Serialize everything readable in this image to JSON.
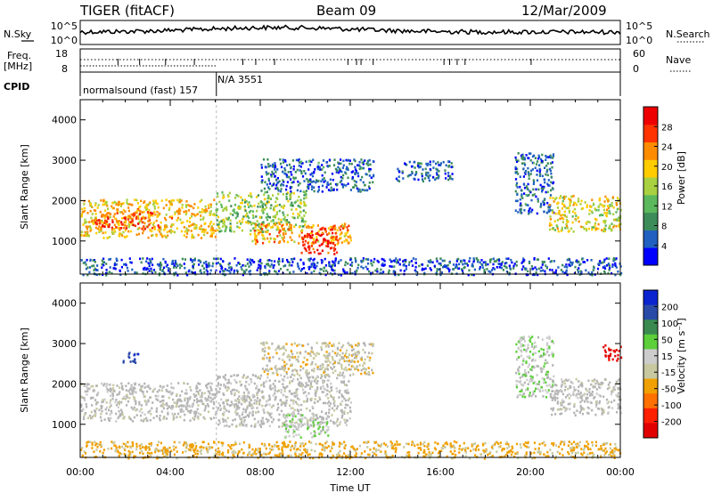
{
  "header": {
    "station": "TIGER (fitACF)",
    "beam": "Beam 09",
    "date": "12/Mar/2009"
  },
  "summary": {
    "nsky_label": "N.Sky",
    "nsearch_label": "N.Search",
    "freq_label_line1": "Freq.",
    "freq_label_line2": "[MHz]",
    "nave_label": "Nave",
    "cpid_label": "CPID",
    "cpid_text_1": "normalsound (fast) 157",
    "cpid_text_2": "N/A 3551",
    "noise_ticks": [
      "10^5",
      "10^0"
    ],
    "freq_ticks": [
      "18",
      "8"
    ],
    "nave_ticks": [
      "60",
      "0"
    ]
  },
  "time_axis": {
    "label": "Time UT",
    "ticks": [
      "00:00",
      "04:00",
      "08:00",
      "12:00",
      "16:00",
      "20:00",
      "00:00"
    ],
    "range_hours": [
      0,
      24
    ],
    "mode_change_hour": 6.05
  },
  "colors": {
    "power": [
      "#0000ff",
      "#2060c0",
      "#3c8c5a",
      "#5cb85c",
      "#a8d040",
      "#ffcc00",
      "#ff8c00",
      "#ff3300",
      "#ee0000"
    ],
    "velocity": [
      "#0b24d0",
      "#2a4aa8",
      "#3a8a50",
      "#5ccf3a",
      "#cccccc",
      "#c8c8a0",
      "#f0a000",
      "#ff7000",
      "#ff2000",
      "#e00000"
    ],
    "ground_scatter": "#b4b4b4"
  },
  "chart_data": [
    {
      "type": "heatmap",
      "name": "power",
      "ylabel": "Slant Range [km]",
      "ylim": [
        180,
        4500
      ],
      "yticks": [
        "1000",
        "2000",
        "3000",
        "4000"
      ],
      "colorbar_label": "Power [dB]",
      "colorbar_ticks": [
        "4",
        "8",
        "12",
        "16",
        "20",
        "24",
        "28"
      ],
      "crange": [
        0,
        32
      ],
      "regions": [
        {
          "t": [
            0.0,
            6.0
          ],
          "r": [
            1100,
            2050
          ],
          "value": 20
        },
        {
          "t": [
            0.6,
            3.5
          ],
          "r": [
            1300,
            1750
          ],
          "value": 26
        },
        {
          "t": [
            6.0,
            10.0
          ],
          "r": [
            1250,
            2250
          ],
          "value": 14
        },
        {
          "t": [
            7.5,
            12.0
          ],
          "r": [
            950,
            1450
          ],
          "value": 22
        },
        {
          "t": [
            9.8,
            11.4
          ],
          "r": [
            700,
            1350
          ],
          "value": 29
        },
        {
          "t": [
            8.0,
            13.0
          ],
          "r": [
            2250,
            3050
          ],
          "value": 6
        },
        {
          "t": [
            14.0,
            16.5
          ],
          "r": [
            2500,
            3000
          ],
          "value": 6
        },
        {
          "t": [
            19.3,
            21.0
          ],
          "r": [
            1700,
            3200
          ],
          "value": 6
        },
        {
          "t": [
            20.8,
            24.0
          ],
          "r": [
            1250,
            2150
          ],
          "value": 18
        },
        {
          "t": [
            0.0,
            24.0
          ],
          "r": [
            180,
            600
          ],
          "value": 5
        }
      ]
    },
    {
      "type": "heatmap",
      "name": "velocity",
      "ylabel": "Slant Range [km]",
      "ylim": [
        180,
        4500
      ],
      "yticks": [
        "1000",
        "2000",
        "3000",
        "4000"
      ],
      "colorbar_label": "Velocity [m s⁻¹]",
      "colorbar_ticks": [
        "200",
        "100",
        "50",
        "15",
        "-15",
        "-50",
        "-100",
        "-200"
      ],
      "crange": [
        250,
        -250
      ],
      "regions": [
        {
          "t": [
            0.0,
            6.0
          ],
          "r": [
            1100,
            2050
          ],
          "value": 0
        },
        {
          "t": [
            6.0,
            12.0
          ],
          "r": [
            950,
            2250
          ],
          "value": 0
        },
        {
          "t": [
            9.0,
            11.0
          ],
          "r": [
            700,
            1300
          ],
          "value": 40
        },
        {
          "t": [
            1.8,
            2.6
          ],
          "r": [
            2550,
            2800
          ],
          "value": 180
        },
        {
          "t": [
            8.0,
            13.0
          ],
          "r": [
            2250,
            3050
          ],
          "value": -30
        },
        {
          "t": [
            19.3,
            21.0
          ],
          "r": [
            1700,
            3200
          ],
          "value": 35
        },
        {
          "t": [
            20.8,
            24.0
          ],
          "r": [
            1250,
            2150
          ],
          "value": 0
        },
        {
          "t": [
            23.2,
            24.0
          ],
          "r": [
            2600,
            3000
          ],
          "value": -220
        },
        {
          "t": [
            0.0,
            24.0
          ],
          "r": [
            180,
            600
          ],
          "value": -60
        }
      ]
    }
  ]
}
